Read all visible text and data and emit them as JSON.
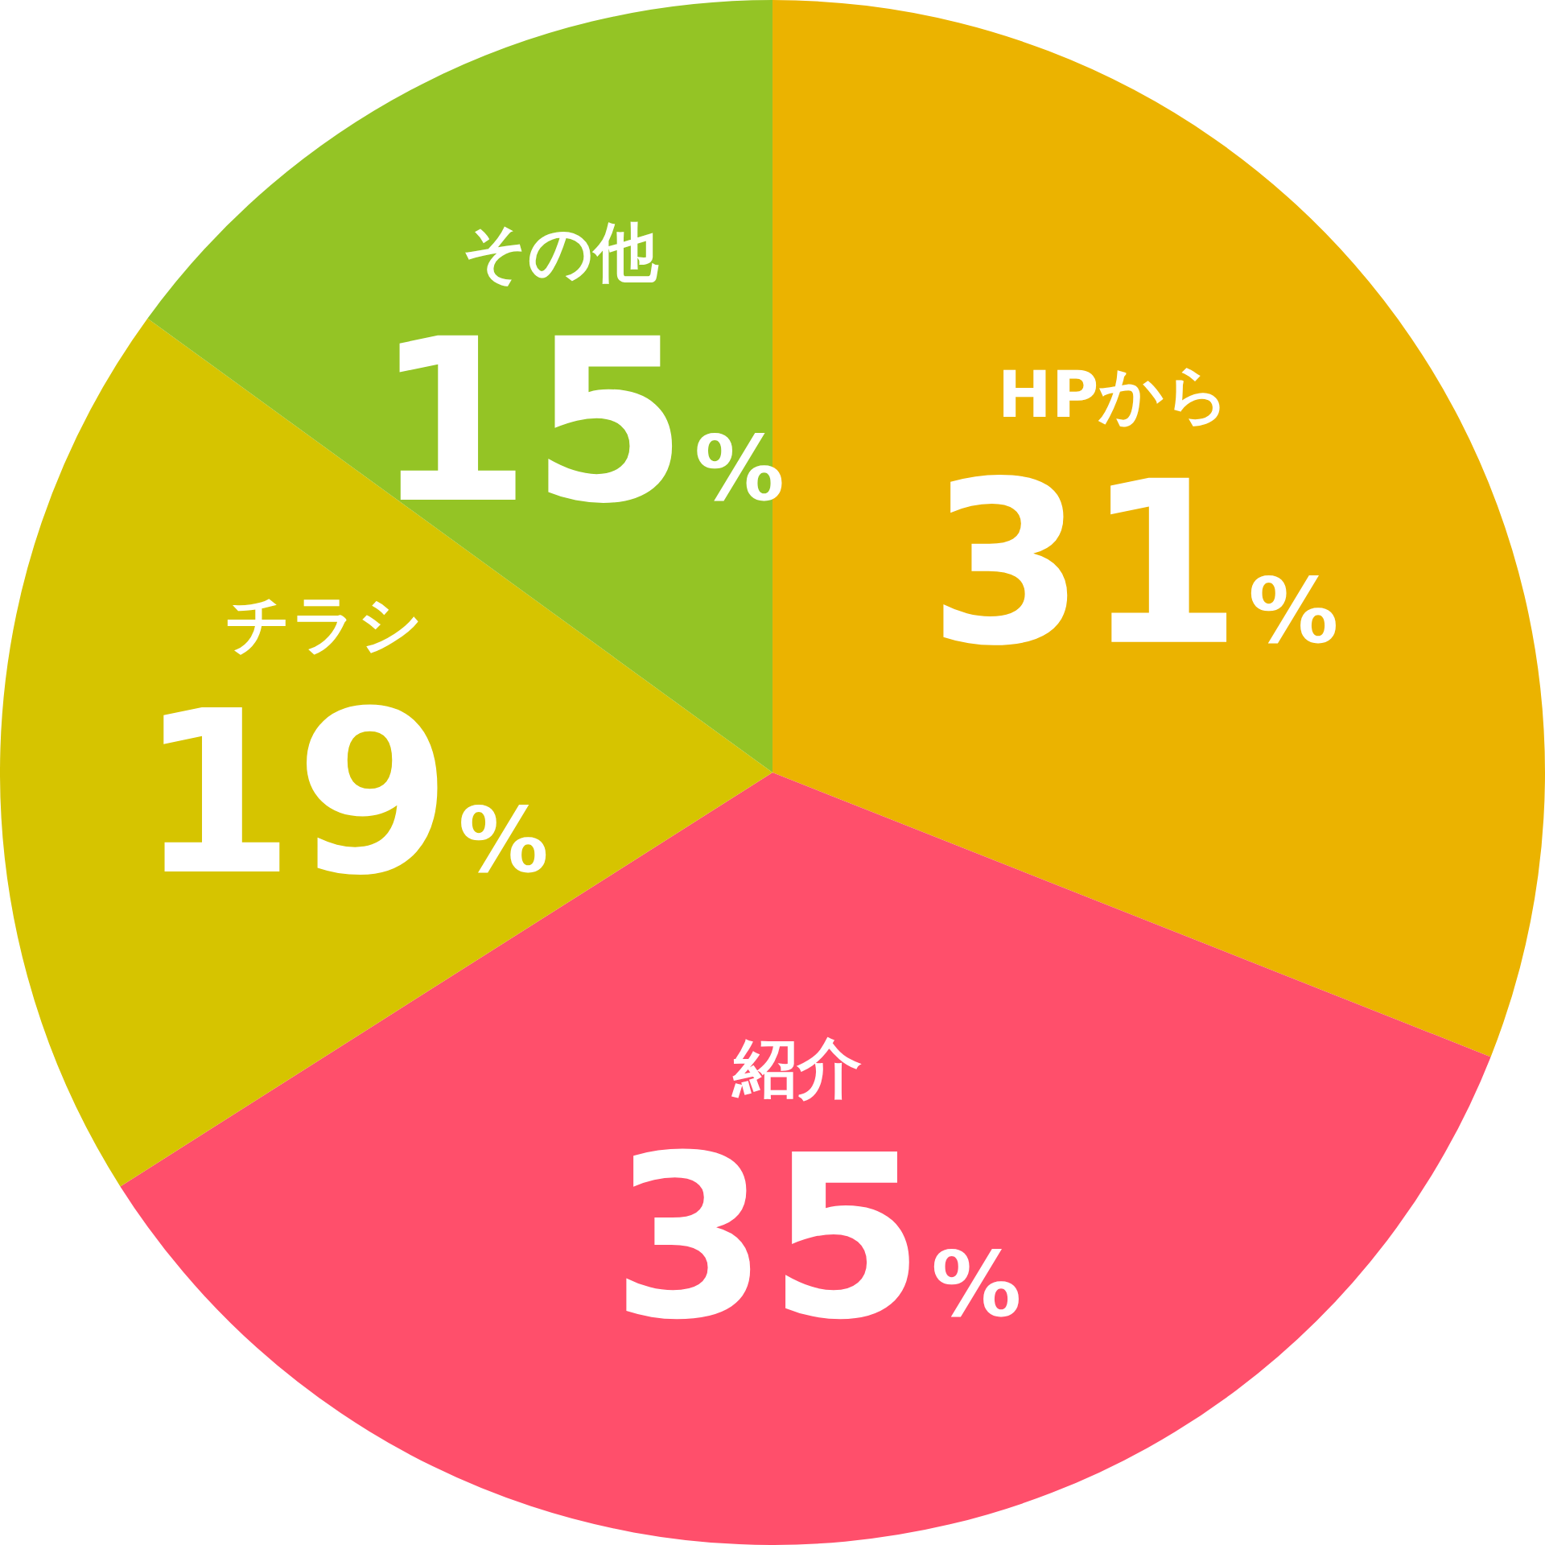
{
  "chart_data": {
    "type": "pie",
    "categories": [
      "HPから",
      "紹介",
      "チラシ",
      "その他"
    ],
    "values": [
      31,
      35,
      19,
      15
    ],
    "value_labels": [
      "31%",
      "35%",
      "19%",
      "15%"
    ],
    "colors": [
      "#ebb300",
      "#ff4f6b",
      "#d6c400",
      "#94c425"
    ],
    "legend": false
  }
}
